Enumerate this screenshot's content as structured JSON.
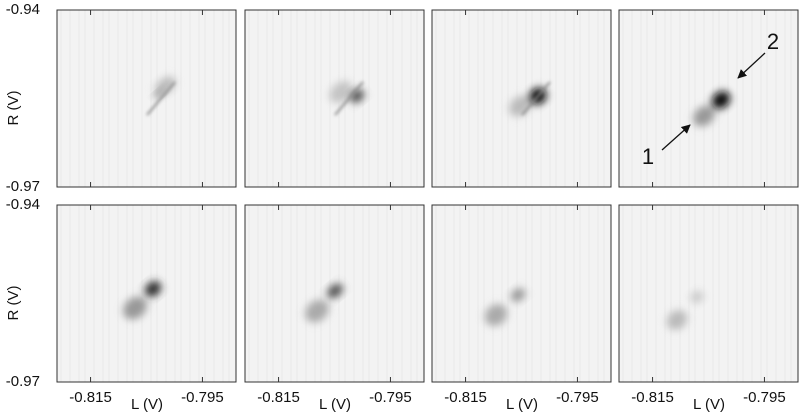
{
  "chart_data": {
    "type": "image_grid",
    "rows": 2,
    "cols": 4,
    "xlabel": "L (V)",
    "ylabel": "R (V)",
    "xlim": [
      -0.821,
      -0.789
    ],
    "ylim": [
      -0.97,
      -0.94
    ],
    "xticks": [
      -0.815,
      -0.795
    ],
    "yticks": [
      -0.97,
      -0.94
    ],
    "annotations": [
      "1",
      "2"
    ]
  }
}
